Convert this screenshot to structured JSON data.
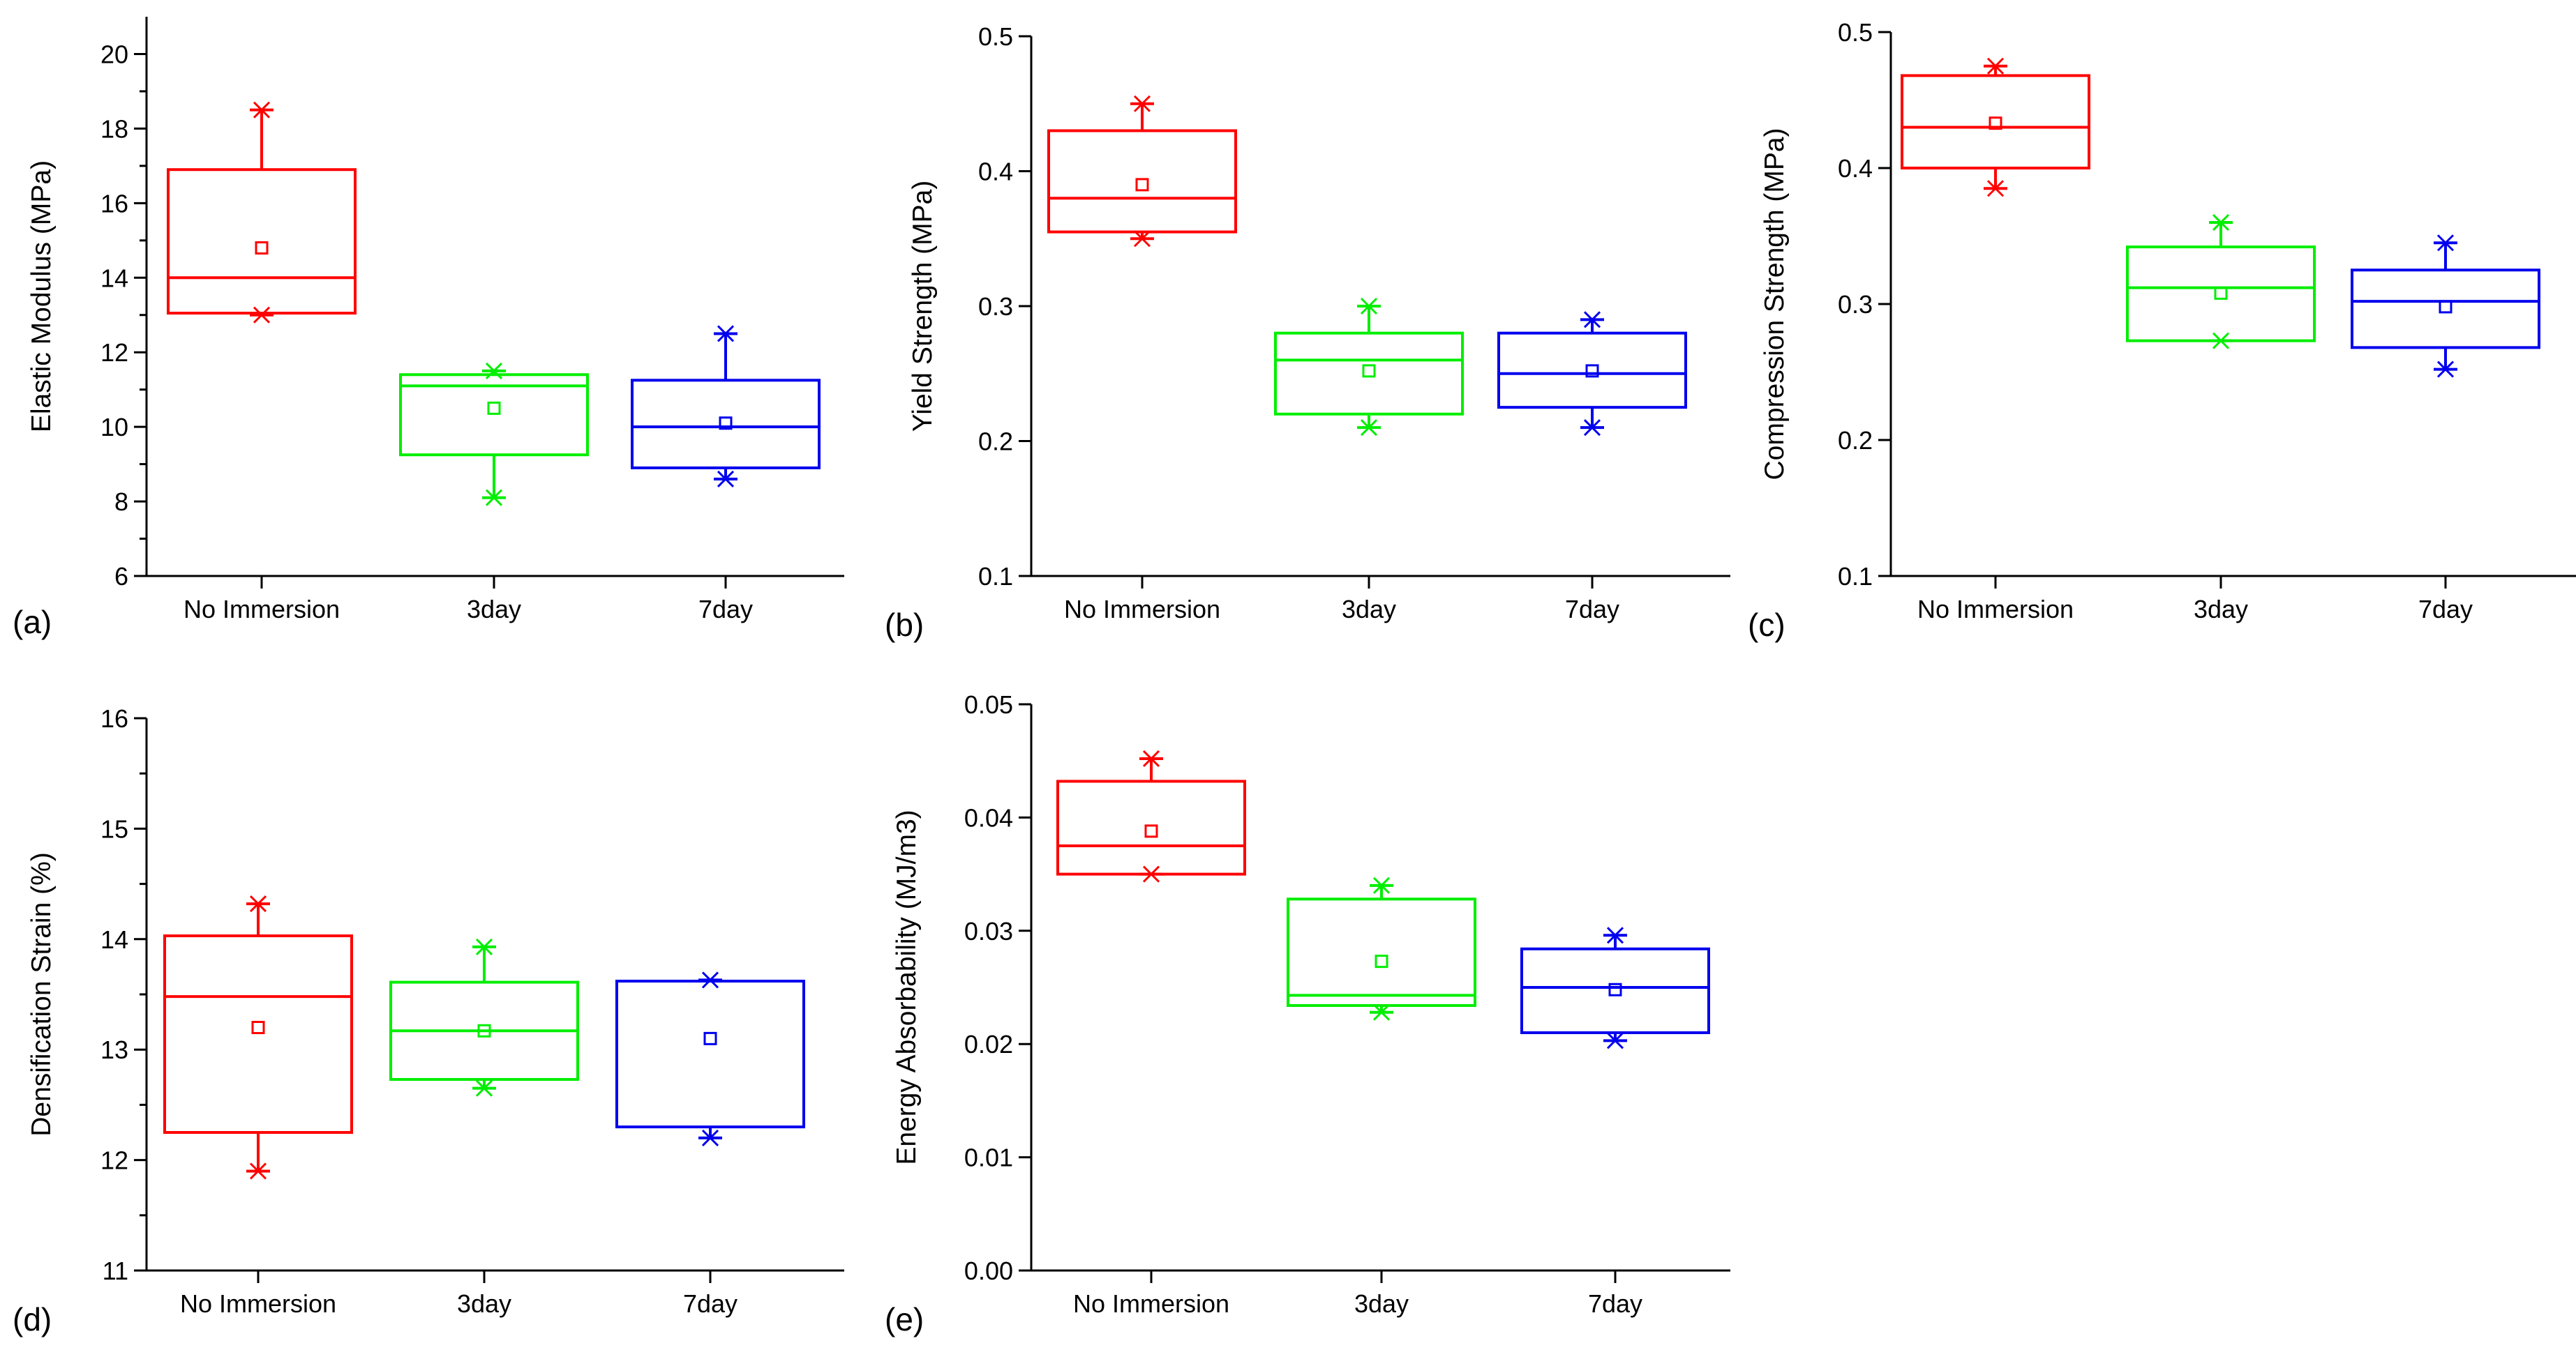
{
  "chart_data": [
    {
      "type": "box",
      "panel_label": "(a)",
      "ylabel": "Elastic Modulus (MPa)",
      "ylim": [
        6,
        21
      ],
      "yticks": [
        6,
        8,
        10,
        12,
        14,
        16,
        18,
        20
      ],
      "yminor": true,
      "categories": [
        "No Immersion",
        "3day",
        "7day"
      ],
      "colors": [
        "#ff0000",
        "#00ee00",
        "#0000ee"
      ],
      "boxes": [
        {
          "whisker_low": 13.0,
          "q1": 13.05,
          "median": 14.0,
          "q3": 16.9,
          "whisker_high": 18.5,
          "mean": 14.8,
          "min": 13.0,
          "max": 18.5
        },
        {
          "whisker_low": 8.1,
          "q1": 9.25,
          "median": 11.1,
          "q3": 11.4,
          "whisker_high": 11.5,
          "mean": 10.5,
          "min": 8.1,
          "max": 11.5
        },
        {
          "whisker_low": 8.6,
          "q1": 8.9,
          "median": 10.0,
          "q3": 11.25,
          "whisker_high": 12.5,
          "mean": 10.1,
          "min": 8.6,
          "max": 12.5
        }
      ]
    },
    {
      "type": "box",
      "panel_label": "(b)",
      "ylabel": "Yield Strength (MPa)",
      "ylim": [
        0.1,
        0.5
      ],
      "yticks": [
        0.1,
        0.2,
        0.3,
        0.4,
        0.5
      ],
      "yminor": false,
      "categories": [
        "No Immersion",
        "3day",
        "7day"
      ],
      "colors": [
        "#ff0000",
        "#00ee00",
        "#0000ee"
      ],
      "boxes": [
        {
          "whisker_low": 0.35,
          "q1": 0.355,
          "median": 0.38,
          "q3": 0.43,
          "whisker_high": 0.45,
          "mean": 0.39,
          "min": 0.35,
          "max": 0.45
        },
        {
          "whisker_low": 0.21,
          "q1": 0.22,
          "median": 0.26,
          "q3": 0.28,
          "whisker_high": 0.3,
          "mean": 0.252,
          "min": 0.21,
          "max": 0.3
        },
        {
          "whisker_low": 0.21,
          "q1": 0.225,
          "median": 0.25,
          "q3": 0.28,
          "whisker_high": 0.29,
          "mean": 0.252,
          "min": 0.21,
          "max": 0.29
        }
      ]
    },
    {
      "type": "box",
      "panel_label": "(c)",
      "ylabel": "Compression Strength (MPa)",
      "ylim": [
        0.1,
        0.5
      ],
      "yticks": [
        0.1,
        0.2,
        0.3,
        0.4,
        0.5
      ],
      "yminor": false,
      "categories": [
        "No Immersion",
        "3day",
        "7day"
      ],
      "colors": [
        "#ff0000",
        "#00ee00",
        "#0000ee"
      ],
      "boxes": [
        {
          "whisker_low": 0.385,
          "q1": 0.4,
          "median": 0.43,
          "q3": 0.468,
          "whisker_high": 0.475,
          "mean": 0.433,
          "min": 0.385,
          "max": 0.475
        },
        {
          "whisker_low": 0.273,
          "q1": 0.273,
          "median": 0.312,
          "q3": 0.342,
          "whisker_high": 0.36,
          "mean": 0.308,
          "min": 0.273,
          "max": 0.36
        },
        {
          "whisker_low": 0.252,
          "q1": 0.268,
          "median": 0.302,
          "q3": 0.325,
          "whisker_high": 0.345,
          "mean": 0.298,
          "min": 0.252,
          "max": 0.345
        }
      ]
    },
    {
      "type": "box",
      "panel_label": "(d)",
      "ylabel": "Densification Strain (%)",
      "ylim": [
        11,
        16
      ],
      "yticks": [
        11,
        12,
        13,
        14,
        15,
        16
      ],
      "yminor": true,
      "categories": [
        "No Immersion",
        "3day",
        "7day"
      ],
      "colors": [
        "#ff0000",
        "#00ee00",
        "#0000ee"
      ],
      "boxes": [
        {
          "whisker_low": 11.9,
          "q1": 12.25,
          "median": 13.48,
          "q3": 14.03,
          "whisker_high": 14.32,
          "mean": 13.2,
          "min": 11.9,
          "max": 14.32
        },
        {
          "whisker_low": 12.65,
          "q1": 12.73,
          "median": 13.17,
          "q3": 13.61,
          "whisker_high": 13.93,
          "mean": 13.17,
          "min": 12.65,
          "max": 13.93
        },
        {
          "whisker_low": 12.2,
          "q1": 12.3,
          "median": 13.62,
          "q3": 13.62,
          "whisker_high": 13.63,
          "mean": 13.1,
          "min": 12.2,
          "max": 13.63
        }
      ]
    },
    {
      "type": "box",
      "panel_label": "(e)",
      "ylabel": "Energy Absorbability (MJ/m3)",
      "ylim": [
        0,
        0.05
      ],
      "yticks": [
        0,
        0.01,
        0.02,
        0.03,
        0.04,
        0.05
      ],
      "yminor": false,
      "categories": [
        "No Immersion",
        "3day",
        "7day"
      ],
      "colors": [
        "#ff0000",
        "#00ee00",
        "#0000ee"
      ],
      "boxes": [
        {
          "whisker_low": 0.035,
          "q1": 0.035,
          "median": 0.0375,
          "q3": 0.0432,
          "whisker_high": 0.0452,
          "mean": 0.0388,
          "min": 0.035,
          "max": 0.0452
        },
        {
          "whisker_low": 0.0228,
          "q1": 0.0234,
          "median": 0.0243,
          "q3": 0.0328,
          "whisker_high": 0.034,
          "mean": 0.0273,
          "min": 0.0228,
          "max": 0.034
        },
        {
          "whisker_low": 0.0203,
          "q1": 0.021,
          "median": 0.025,
          "q3": 0.0284,
          "whisker_high": 0.0296,
          "mean": 0.0248,
          "min": 0.0203,
          "max": 0.0296
        }
      ]
    }
  ]
}
